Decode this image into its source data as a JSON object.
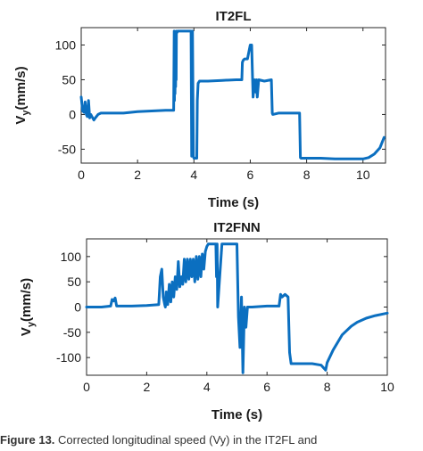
{
  "caption": {
    "label": "Figure 13.",
    "text": "Corrected longitudinal speed (Vy) in the IT2FL and"
  },
  "chart_data": [
    {
      "type": "line",
      "title": "IT2FL",
      "xlabel": "Time (s)",
      "ylabel": "V",
      "ylabel_sub": "y",
      "ylabel_unit": "(mm/s)",
      "xlim": [
        0,
        10.8
      ],
      "ylim": [
        -70,
        125
      ],
      "xticks": [
        0,
        2,
        4,
        6,
        8,
        10
      ],
      "yticks": [
        -50,
        0,
        50,
        100
      ],
      "grid": false,
      "color": "#0b6fc0",
      "series": [
        {
          "x": [
            0,
            0.05,
            0.1,
            0.14,
            0.18,
            0.22,
            0.26,
            0.3,
            0.34,
            0.38,
            0.45,
            0.5,
            0.6,
            0.7,
            1.0,
            1.5,
            2.0,
            2.5,
            3.0,
            3.28,
            3.3,
            3.31,
            3.32,
            3.33,
            3.34,
            3.35,
            3.36,
            3.37,
            3.38,
            3.4,
            3.42,
            3.45,
            3.5,
            3.8,
            3.9,
            3.92,
            3.95,
            3.98,
            4.0,
            4.05,
            4.1,
            4.12,
            4.15,
            4.2,
            4.5,
            5.0,
            5.5,
            5.7,
            5.72,
            5.75,
            5.8,
            5.9,
            6.0,
            6.05,
            6.1,
            6.15,
            6.2,
            6.22,
            6.25,
            6.3,
            6.5,
            6.75,
            6.78,
            6.8,
            7.0,
            7.5,
            7.75,
            7.78,
            7.8,
            8.0,
            8.5,
            9.0,
            9.5,
            10.0,
            10.2,
            10.4,
            10.6,
            10.75
          ],
          "y": [
            25,
            5,
            3,
            18,
            0,
            -3,
            20,
            -5,
            0,
            -3,
            -8,
            -5,
            0,
            2,
            2,
            2,
            4,
            5,
            6,
            6,
            120,
            20,
            110,
            30,
            100,
            40,
            115,
            50,
            120,
            118,
            120,
            120,
            120,
            120,
            120,
            -60,
            120,
            -60,
            -63,
            -63,
            -63,
            20,
            45,
            48,
            48,
            49,
            50,
            50,
            75,
            78,
            80,
            80,
            100,
            100,
            25,
            50,
            32,
            50,
            25,
            50,
            48,
            50,
            2,
            0,
            2,
            2,
            2,
            -62,
            -63,
            -63,
            -63,
            -64,
            -64,
            -64,
            -62,
            -57,
            -48,
            -33
          ]
        }
      ]
    },
    {
      "type": "line",
      "title": "IT2FNN",
      "xlabel": "Time (s)",
      "ylabel": "V",
      "ylabel_sub": "y",
      "ylabel_unit": "(mm/s)",
      "xlim": [
        0,
        10
      ],
      "ylim": [
        -135,
        135
      ],
      "xticks": [
        0,
        2,
        4,
        6,
        8,
        10
      ],
      "yticks": [
        -100,
        -50,
        0,
        50,
        100
      ],
      "grid": false,
      "color": "#0b6fc0",
      "series": [
        {
          "x": [
            0,
            0.5,
            0.8,
            0.85,
            0.9,
            0.95,
            1.0,
            1.5,
            2.0,
            2.4,
            2.45,
            2.5,
            2.55,
            2.6,
            2.62,
            2.65,
            2.7,
            2.75,
            2.8,
            2.85,
            2.9,
            2.95,
            3.0,
            3.05,
            3.1,
            3.15,
            3.2,
            3.25,
            3.3,
            3.35,
            3.4,
            3.45,
            3.5,
            3.55,
            3.6,
            3.65,
            3.7,
            3.75,
            3.8,
            3.85,
            3.9,
            3.95,
            4.0,
            4.05,
            4.1,
            4.2,
            4.3,
            4.32,
            4.34,
            4.36,
            4.5,
            4.8,
            5.0,
            5.05,
            5.1,
            5.15,
            5.2,
            5.25,
            5.3,
            5.35,
            5.4,
            5.5,
            6.0,
            6.4,
            6.45,
            6.5,
            6.6,
            6.7,
            6.75,
            6.8,
            7.0,
            7.5,
            7.8,
            7.95,
            8.0,
            8.2,
            8.5,
            8.8,
            9.0,
            9.3,
            9.6,
            10.0
          ],
          "y": [
            0,
            0,
            2,
            15,
            12,
            18,
            2,
            2,
            3,
            5,
            60,
            75,
            20,
            5,
            0,
            30,
            5,
            45,
            10,
            50,
            20,
            60,
            35,
            90,
            40,
            60,
            45,
            95,
            50,
            95,
            55,
            95,
            60,
            95,
            50,
            100,
            55,
            100,
            60,
            105,
            75,
            110,
            120,
            125,
            125,
            125,
            125,
            60,
            125,
            0,
            125,
            125,
            125,
            -20,
            -80,
            20,
            -130,
            0,
            -40,
            0,
            0,
            0,
            2,
            2,
            25,
            20,
            25,
            20,
            -90,
            -112,
            -112,
            -112,
            -115,
            -125,
            -110,
            -85,
            -55,
            -38,
            -30,
            -22,
            -17,
            -12
          ]
        }
      ]
    }
  ]
}
